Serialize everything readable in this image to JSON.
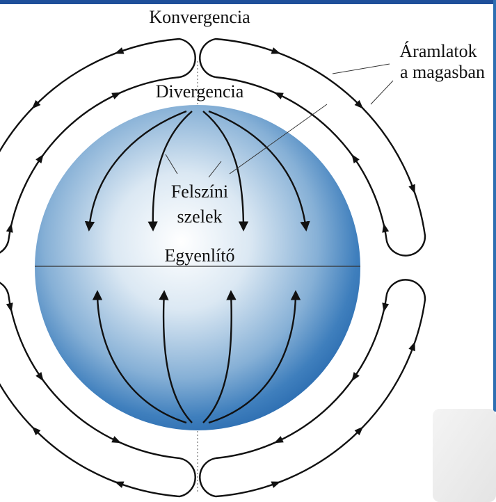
{
  "labels": {
    "top": "Konvergencia",
    "upper_center": "Divergencia",
    "upper_air_line1": "Áramlatok",
    "upper_air_line2": "a magasban",
    "surface_line1": "Felszíni",
    "surface_line2": "szelek",
    "equator": "Egyenlítő"
  }
}
